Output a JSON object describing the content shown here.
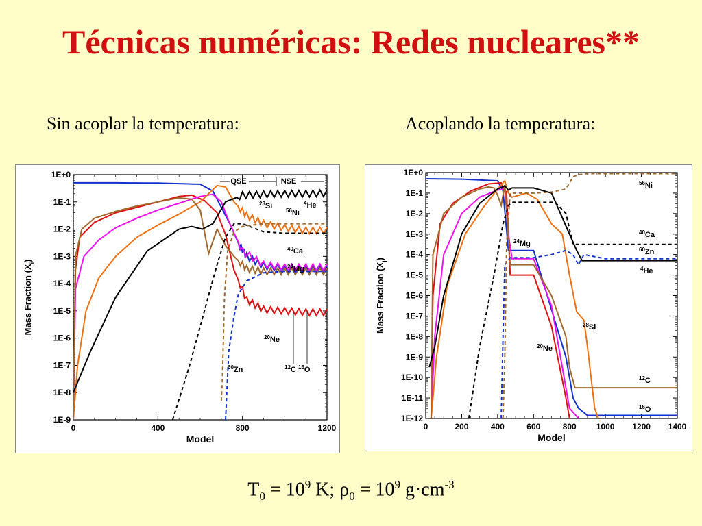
{
  "slide": {
    "title": "Técnicas numéricas: Redes nucleares**",
    "subtitle_left": "Sin acoplar la temperatura:",
    "subtitle_right": "Acoplando la temperatura:",
    "formula": {
      "T_sym": "T",
      "T_sub": "0",
      "eq1": " = 10",
      "exp1": "9",
      "unit1": " K;  ",
      "rho_sym": "ρ",
      "rho_sub": "0",
      "eq2": " = 10",
      "exp2": "9",
      "unit2": " g·cm",
      "exp3": "-3"
    }
  },
  "chart_data": [
    {
      "type": "line",
      "xlabel": "Model",
      "ylabel": "Mass Fraction (X",
      "ylabel_sub": "i",
      "ylabel_end": ")",
      "log_y": true,
      "xlim": [
        0,
        1200
      ],
      "ylim_exp": [
        -9,
        0
      ],
      "xticks": [
        "0",
        "400",
        "800",
        "1200"
      ],
      "xtick_values": [
        0,
        400,
        800,
        1200
      ],
      "yticks": [
        "1E+0",
        "1E-1",
        "1E-2",
        "1E-3",
        "1E-4",
        "1E-5",
        "1E-6",
        "1E-7",
        "1E-8",
        "1E-9"
      ],
      "ytick_exps": [
        0,
        -1,
        -2,
        -3,
        -4,
        -5,
        -6,
        -7,
        -8,
        -9
      ],
      "annotations": [
        "QSE",
        "NSE"
      ],
      "species_labels": [
        {
          "mass": "4",
          "el": "He"
        },
        {
          "mass": "28",
          "el": "Si"
        },
        {
          "mass": "56",
          "el": "Ni"
        },
        {
          "mass": "40",
          "el": "Ca"
        },
        {
          "mass": "24",
          "el": "Mg"
        },
        {
          "mass": "20",
          "el": "Ne"
        },
        {
          "mass": "60",
          "el": "Zn"
        },
        {
          "mass": "12",
          "el": "C"
        },
        {
          "mass": "16",
          "el": "O"
        }
      ],
      "series": [
        {
          "color": "#1030d0",
          "dash": false,
          "x": [
            0,
            200,
            400,
            600,
            660,
            700,
            740,
            780,
            820,
            900,
            1000,
            1100,
            1200
          ],
          "log10y": [
            -0.3,
            -0.3,
            -0.31,
            -0.35,
            -0.6,
            -1.2,
            -1.8,
            -2.5,
            -3.0,
            -3.35,
            -3.45,
            -3.45,
            -3.45
          ]
        },
        {
          "color": "#e01010",
          "dash": false,
          "x": [
            0,
            10,
            30,
            100,
            200,
            300,
            400,
            500,
            560,
            620,
            680,
            720,
            760,
            820,
            900,
            1000,
            1100,
            1200
          ],
          "log10y": [
            -8.8,
            -3.5,
            -2.3,
            -1.75,
            -1.4,
            -1.2,
            -1.0,
            -0.8,
            -0.75,
            -0.95,
            -1.4,
            -2.2,
            -3.5,
            -4.6,
            -4.95,
            -5.0,
            -5.05,
            -5.05
          ]
        },
        {
          "color": "#ee10ee",
          "dash": false,
          "x": [
            0,
            10,
            50,
            120,
            200,
            300,
            400,
            500,
            600,
            660,
            700,
            740,
            800,
            900,
            1000,
            1100,
            1200
          ],
          "log10y": [
            -9,
            -4.2,
            -3.0,
            -2.4,
            -1.95,
            -1.6,
            -1.3,
            -1.05,
            -0.8,
            -0.72,
            -1.0,
            -1.8,
            -2.8,
            -3.3,
            -3.4,
            -3.4,
            -3.4
          ]
        },
        {
          "color": "#ee7010",
          "dash": false,
          "x": [
            0,
            20,
            60,
            120,
            200,
            300,
            400,
            500,
            600,
            680,
            720,
            760,
            820,
            900,
            1000,
            1100,
            1200
          ],
          "log10y": [
            -9,
            -7.0,
            -5.0,
            -3.8,
            -3.0,
            -2.3,
            -1.85,
            -1.45,
            -1.0,
            -0.4,
            -0.45,
            -1.0,
            -1.5,
            -1.8,
            -1.95,
            -2.05,
            -2.05
          ]
        },
        {
          "color": "#a0682a",
          "dash": false,
          "x": [
            0,
            10,
            40,
            100,
            200,
            300,
            400,
            500,
            560,
            600,
            640,
            680,
            720,
            760,
            820,
            900,
            1000,
            1100,
            1200
          ],
          "log10y": [
            -9,
            -3.0,
            -2.0,
            -1.6,
            -1.35,
            -1.15,
            -1.0,
            -0.85,
            -0.9,
            -1.3,
            -2.9,
            -2.0,
            -2.6,
            -3.0,
            -3.45,
            -3.55,
            -3.55,
            -3.55,
            -3.55
          ]
        },
        {
          "color": "#000000",
          "dash": false,
          "x": [
            0,
            80,
            200,
            350,
            500,
            560,
            610,
            660,
            720,
            800,
            900,
            1000,
            1100,
            1200
          ],
          "log10y": [
            -8.0,
            -6.5,
            -4.5,
            -2.8,
            -2.0,
            -1.9,
            -2.0,
            -1.8,
            -1.0,
            -0.75,
            -0.72,
            -0.7,
            -0.7,
            -0.68
          ]
        },
        {
          "color": "#000000",
          "dash": true,
          "x": [
            470,
            550,
            620,
            680,
            720,
            760,
            800,
            900,
            1000,
            1100,
            1200
          ],
          "log10y": [
            -9,
            -7.0,
            -5.0,
            -3.3,
            -2.3,
            -1.8,
            -1.8,
            -2.1,
            -2.15,
            -2.15,
            -2.15
          ]
        },
        {
          "color": "#1030d0",
          "dash": true,
          "x": [
            720,
            735,
            760,
            780,
            820,
            900,
            1000,
            1100,
            1200
          ],
          "log10y": [
            -9,
            -6.5,
            -5.2,
            -4.4,
            -3.9,
            -3.6,
            -3.55,
            -3.55,
            -3.55
          ]
        },
        {
          "color": "#a0682a",
          "dash": true,
          "x": [
            700,
            705,
            715,
            730,
            760,
            800,
            900,
            1000,
            1100,
            1200
          ],
          "log10y": [
            -8.3,
            -7.5,
            -4.5,
            -2.8,
            -2.1,
            -1.9,
            -1.8,
            -1.8,
            -1.8,
            -1.8
          ]
        }
      ]
    },
    {
      "type": "line",
      "xlabel": "Model",
      "ylabel": "Mass Fraction (X",
      "ylabel_sub": "i",
      "ylabel_end": ")",
      "log_y": true,
      "xlim": [
        0,
        1400
      ],
      "ylim_exp": [
        -12,
        0
      ],
      "xticks": [
        "0",
        "200",
        "400",
        "600",
        "800",
        "1000",
        "1200",
        "1400"
      ],
      "xtick_values": [
        0,
        200,
        400,
        600,
        800,
        1000,
        1200,
        1400
      ],
      "yticks": [
        "1E+0",
        "1E-1",
        "1E-2",
        "1E-3",
        "1E-4",
        "1E-5",
        "1E-6",
        "1E-7",
        "1E-8",
        "1E-9",
        "1E-10",
        "1E-11",
        "1E-12"
      ],
      "ytick_exps": [
        0,
        -1,
        -2,
        -3,
        -4,
        -5,
        -6,
        -7,
        -8,
        -9,
        -10,
        -11,
        -12
      ],
      "species_labels": [
        {
          "mass": "56",
          "el": "Ni"
        },
        {
          "mass": "40",
          "el": "Ca"
        },
        {
          "mass": "60",
          "el": "Zn"
        },
        {
          "mass": "4",
          "el": "He"
        },
        {
          "mass": "24",
          "el": "Mg"
        },
        {
          "mass": "28",
          "el": "Si"
        },
        {
          "mass": "20",
          "el": "Ne"
        },
        {
          "mass": "12",
          "el": "C"
        },
        {
          "mass": "16",
          "el": "O"
        }
      ],
      "series": [
        {
          "color": "#1030d0",
          "dash": false,
          "x": [
            0,
            200,
            400,
            430,
            460,
            480,
            600,
            780,
            820,
            850,
            900,
            1000,
            1200,
            1400
          ],
          "log10y": [
            -0.3,
            -0.32,
            -0.4,
            -0.9,
            -3.8,
            -3.8,
            -3.8,
            -9.0,
            -11.0,
            -11.5,
            -11.85,
            -11.85,
            -11.85,
            -11.85
          ]
        },
        {
          "color": "#e01010",
          "dash": false,
          "x": [
            30,
            40,
            80,
            150,
            250,
            350,
            420,
            450,
            470,
            600,
            700,
            780,
            800
          ],
          "log10y": [
            -12,
            -6.0,
            -2.5,
            -1.5,
            -0.9,
            -0.55,
            -0.5,
            -1.0,
            -5.0,
            -5.0,
            -7.5,
            -11.0,
            -12
          ]
        },
        {
          "color": "#ee10ee",
          "dash": false,
          "x": [
            30,
            50,
            100,
            200,
            300,
            400,
            440,
            460,
            480,
            600,
            700,
            800,
            850
          ],
          "log10y": [
            -12,
            -8.0,
            -4.0,
            -2.0,
            -1.2,
            -0.85,
            -0.8,
            -3.0,
            -4.2,
            -4.2,
            -6.5,
            -11.5,
            -12
          ]
        },
        {
          "color": "#ee7010",
          "dash": false,
          "x": [
            30,
            60,
            120,
            220,
            320,
            400,
            440,
            460,
            480,
            560,
            620,
            700,
            760,
            800,
            840,
            880,
            900,
            940,
            960
          ],
          "log10y": [
            -12,
            -9.0,
            -5.5,
            -3.0,
            -1.7,
            -0.8,
            -0.4,
            -1.0,
            -1.2,
            -1.0,
            -1.3,
            -2.5,
            -3.0,
            -5.0,
            -6.8,
            -7.2,
            -8.5,
            -11.5,
            -12
          ]
        },
        {
          "color": "#a0682a",
          "dash": false,
          "x": [
            30,
            40,
            100,
            200,
            300,
            350,
            380,
            400,
            420,
            440,
            470,
            600,
            700,
            780,
            800,
            830,
            1000,
            1200,
            1400
          ],
          "log10y": [
            -12,
            -4.0,
            -2.0,
            -1.2,
            -0.8,
            -0.7,
            -0.75,
            -1.1,
            -1.6,
            -0.6,
            -4.5,
            -4.5,
            -6.0,
            -8.0,
            -9.5,
            -10.5,
            -10.5,
            -10.5,
            -10.5
          ]
        },
        {
          "color": "#000000",
          "dash": false,
          "x": [
            20,
            50,
            100,
            200,
            300,
            400,
            440,
            460,
            480,
            600,
            700,
            800,
            840,
            870,
            1000,
            1200,
            1400
          ],
          "log10y": [
            -9.5,
            -8.5,
            -6.0,
            -3.0,
            -1.5,
            -0.8,
            -0.65,
            -0.85,
            -0.75,
            -0.75,
            -1.0,
            -3.0,
            -3.8,
            -4.3,
            -4.3,
            -4.3,
            -4.3
          ]
        },
        {
          "color": "#000000",
          "dash": true,
          "x": [
            240,
            300,
            380,
            430,
            460,
            480,
            600,
            720,
            780,
            820,
            900,
            1000,
            1200,
            1400
          ],
          "log10y": [
            -12,
            -8.5,
            -5.0,
            -2.5,
            -1.6,
            -1.45,
            -1.45,
            -1.45,
            -2.0,
            -3.5,
            -3.5,
            -3.5,
            -3.5,
            -3.5
          ]
        },
        {
          "color": "#1030d0",
          "dash": true,
          "x": [
            420,
            430,
            440,
            470,
            600,
            700,
            780,
            820,
            850,
            880,
            1000,
            1200,
            1400
          ],
          "log10y": [
            -12,
            -8.0,
            -4.5,
            -4.15,
            -4.15,
            -4.0,
            -3.8,
            -4.0,
            -4.5,
            -4.0,
            -4.2,
            -4.2,
            -4.2
          ]
        },
        {
          "color": "#a0682a",
          "dash": true,
          "x": [
            430,
            440,
            450,
            470,
            600,
            700,
            780,
            820,
            850,
            900,
            1000,
            1200,
            1400
          ],
          "log10y": [
            -12,
            -9.0,
            -3.5,
            -1.0,
            -1.0,
            -0.95,
            -0.8,
            -0.2,
            -0.1,
            -0.05,
            -0.05,
            -0.05,
            -0.05
          ]
        }
      ]
    }
  ]
}
